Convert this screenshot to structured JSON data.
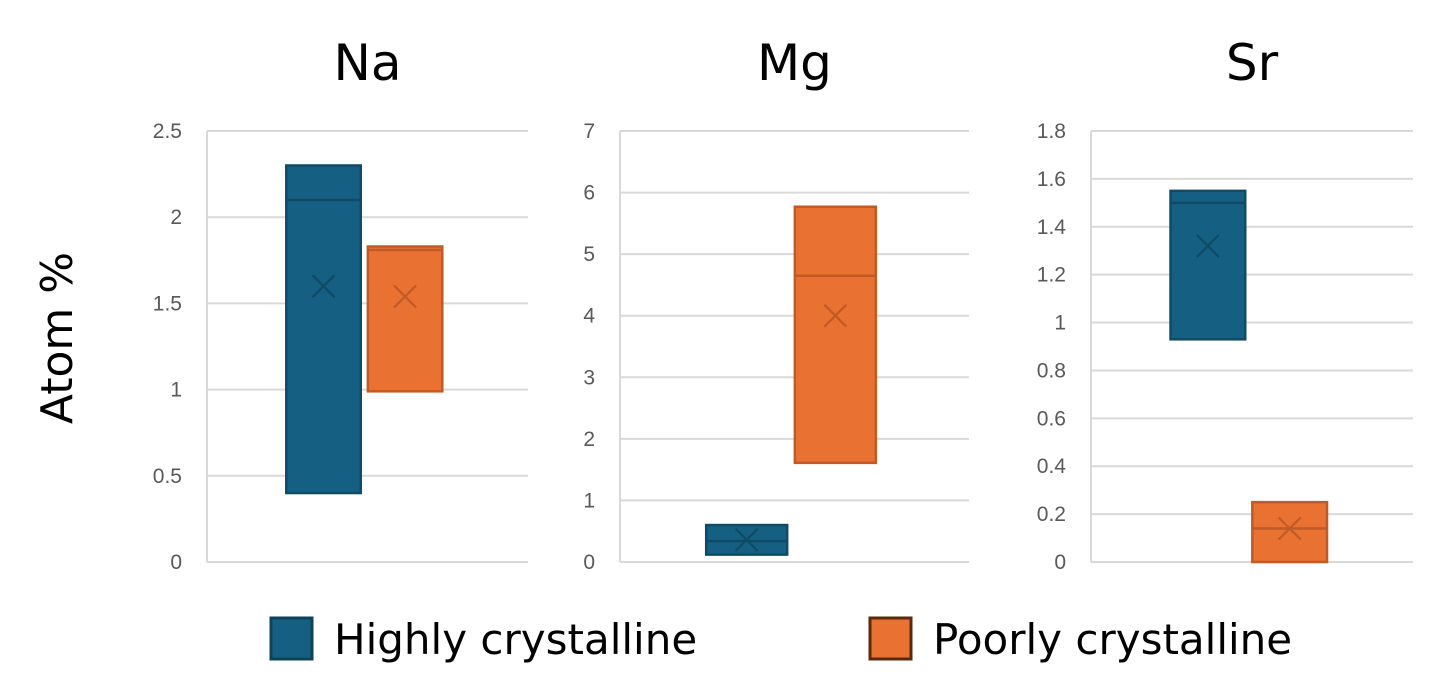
{
  "chart_data": [
    {
      "type": "box",
      "title": "Na",
      "ylabel": "Atom %",
      "ylim": [
        0,
        2.5
      ],
      "yticks": [
        "0",
        "0.5",
        "1",
        "1.5",
        "2",
        "2.5"
      ],
      "grid": true,
      "series": [
        {
          "name": "Highly crystalline",
          "q1": 0.4,
          "median": 2.1,
          "q3": 2.3,
          "mean": 1.6
        },
        {
          "name": "Poorly crystalline",
          "q1": 0.99,
          "median": 1.81,
          "q3": 1.83,
          "mean": 1.54
        }
      ]
    },
    {
      "type": "box",
      "title": "Mg",
      "ylim": [
        0,
        7
      ],
      "yticks": [
        "0",
        "1",
        "2",
        "3",
        "4",
        "5",
        "6",
        "7"
      ],
      "grid": true,
      "series": [
        {
          "name": "Highly crystalline",
          "q1": 0.12,
          "median": 0.34,
          "q3": 0.6,
          "mean": 0.36
        },
        {
          "name": "Poorly crystalline",
          "q1": 1.61,
          "median": 4.65,
          "q3": 5.77,
          "mean": 4.0
        }
      ]
    },
    {
      "type": "box",
      "title": "Sr",
      "ylim": [
        0,
        1.8
      ],
      "yticks": [
        "0",
        "0.2",
        "0.4",
        "0.6",
        "0.8",
        "1",
        "1.2",
        "1.4",
        "1.6",
        "1.8"
      ],
      "grid": true,
      "series": [
        {
          "name": "Highly crystalline",
          "q1": 0.93,
          "median": 1.5,
          "q3": 1.55,
          "mean": 1.32
        },
        {
          "name": "Poorly crystalline",
          "q1": 0.0,
          "median": 0.14,
          "q3": 0.25,
          "mean": 0.14
        }
      ]
    }
  ],
  "ylabel": "Atom %",
  "legend": {
    "placement": "bottom",
    "items": [
      {
        "label": "Highly crystalline",
        "color": "#156082",
        "stroke": "#0e4257"
      },
      {
        "label": "Poorly crystalline",
        "color": "#e97132",
        "stroke": "#5a2a0f"
      }
    ]
  },
  "colors": {
    "highly_fill": "#156082",
    "highly_edge": "#0f4a66",
    "poorly_fill": "#e97132",
    "poorly_edge": "#c05a26",
    "grid": "#d9d9d9",
    "tick_text": "#595959"
  }
}
